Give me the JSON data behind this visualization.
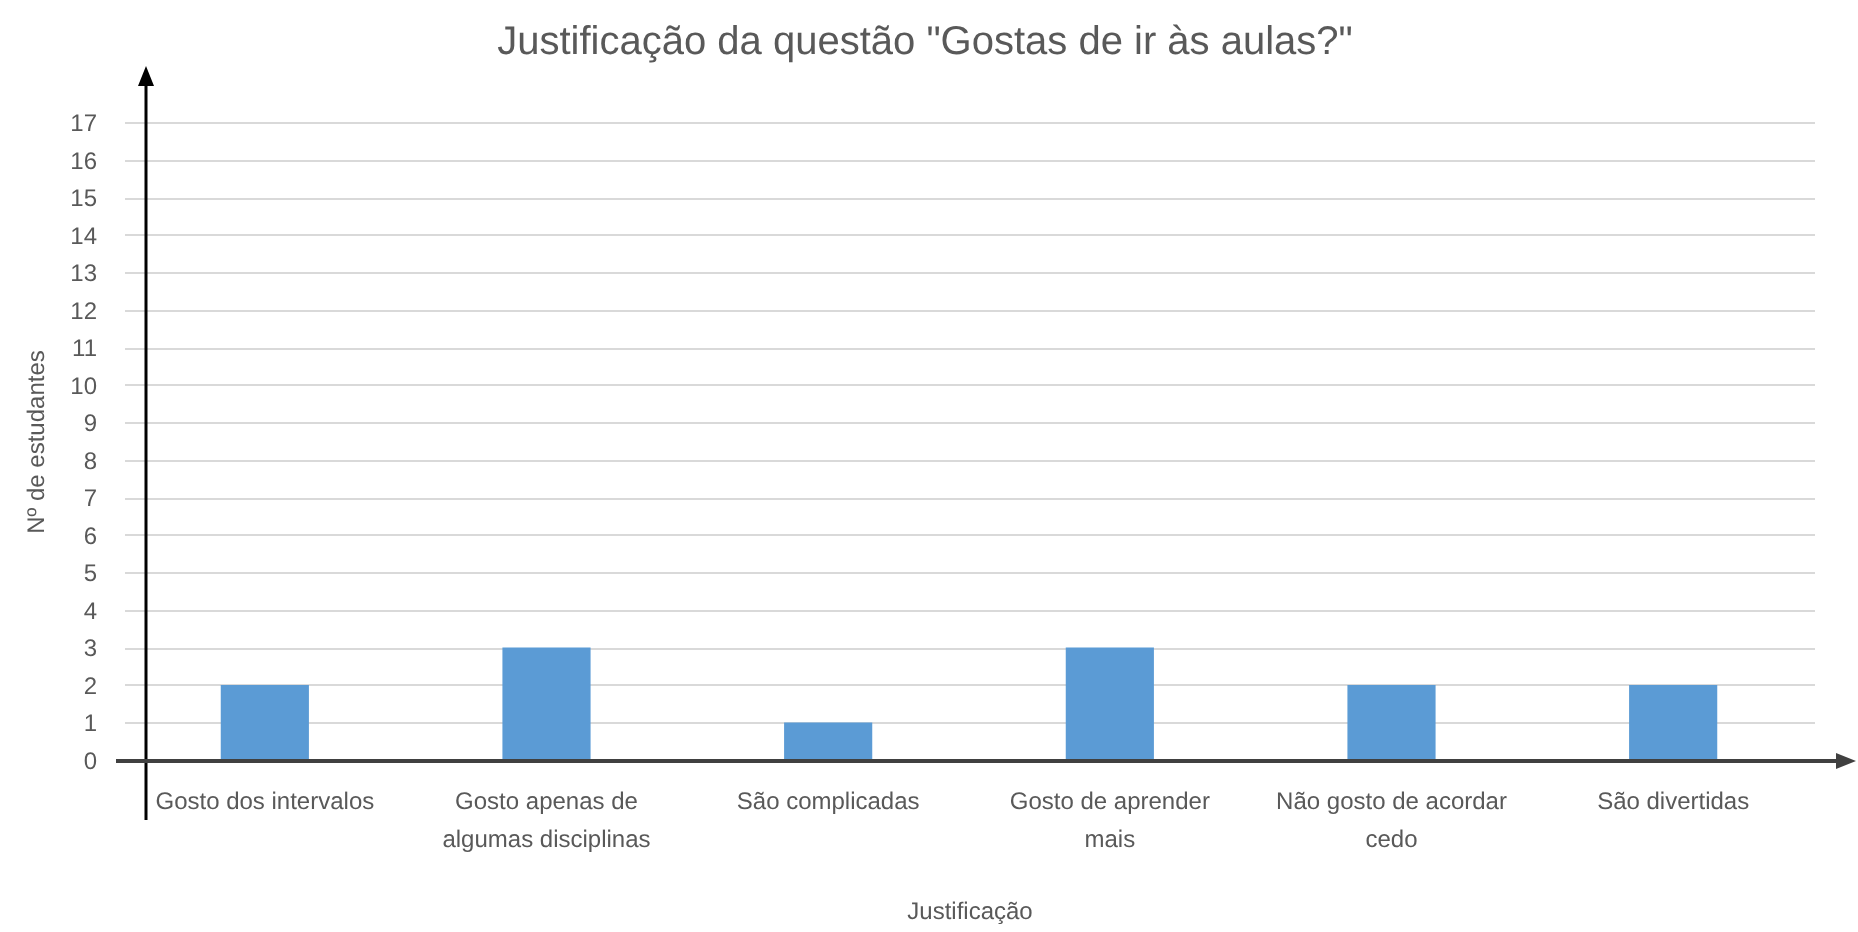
{
  "chart_data": {
    "type": "bar",
    "title": "Justificação da questão \"Gostas de ir às aulas?\"",
    "xlabel": "Justificação",
    "ylabel": "Nº de estudantes",
    "categories": [
      "Gosto dos intervalos",
      "Gosto apenas de algumas disciplinas",
      "São complicadas",
      "Gosto de aprender mais",
      "Não gosto de acordar cedo",
      "São divertidas"
    ],
    "values": [
      2,
      3,
      1,
      3,
      2,
      2
    ],
    "color": "#5b9bd5",
    "ylim": [
      0,
      17
    ],
    "yticks": [
      0,
      1,
      2,
      3,
      4,
      5,
      6,
      7,
      8,
      9,
      10,
      11,
      12,
      13,
      14,
      15,
      16,
      17
    ],
    "grid": "y"
  }
}
